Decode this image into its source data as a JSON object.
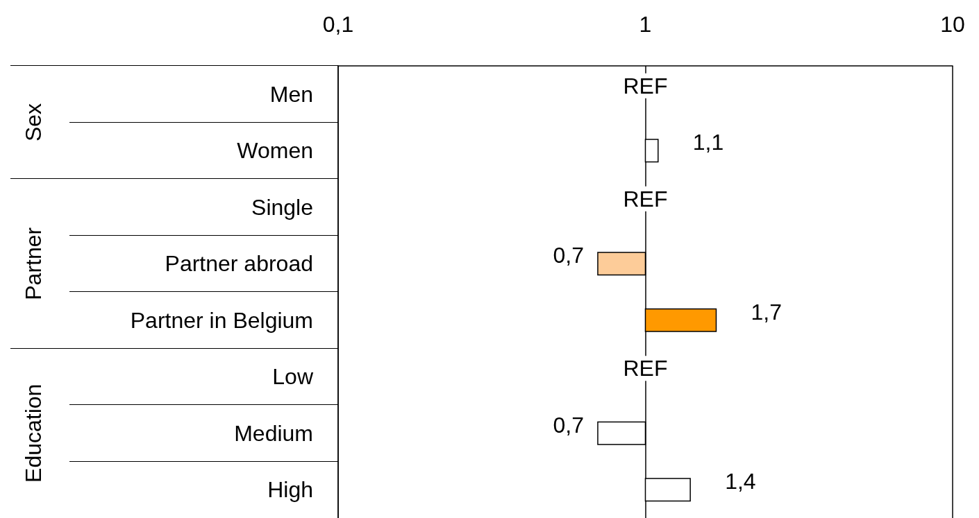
{
  "chart_data": {
    "type": "bar",
    "orientation": "horizontal",
    "log": "x",
    "grid": "x",
    "categories": [
      "Men",
      "Women",
      "Single",
      "Partner abroad",
      "Partner in Belgium",
      "Low",
      "Medium",
      "High"
    ],
    "values": [
      null,
      0.1,
      null,
      -0.3,
      0.7,
      null,
      -0.3,
      0.4
    ],
    "base": [
      null,
      1,
      null,
      1,
      1,
      null,
      1,
      1
    ],
    "value_labels": [
      null,
      "1,1",
      null,
      "0,7",
      "1,7",
      null,
      "0,7",
      "1,4"
    ],
    "colors": [
      null,
      "#ffffff",
      null,
      "#fdcc99",
      "#ff9900",
      null,
      "#ffffff",
      "#ffffff"
    ],
    "xlim": [
      0.1,
      10
    ],
    "xticks": [
      {
        "value": 0.1,
        "label": "0,1"
      },
      1,
      10
    ],
    "annotations": [
      "Sex",
      "REF",
      "Partner",
      "REF",
      "Education",
      "REF"
    ]
  }
}
